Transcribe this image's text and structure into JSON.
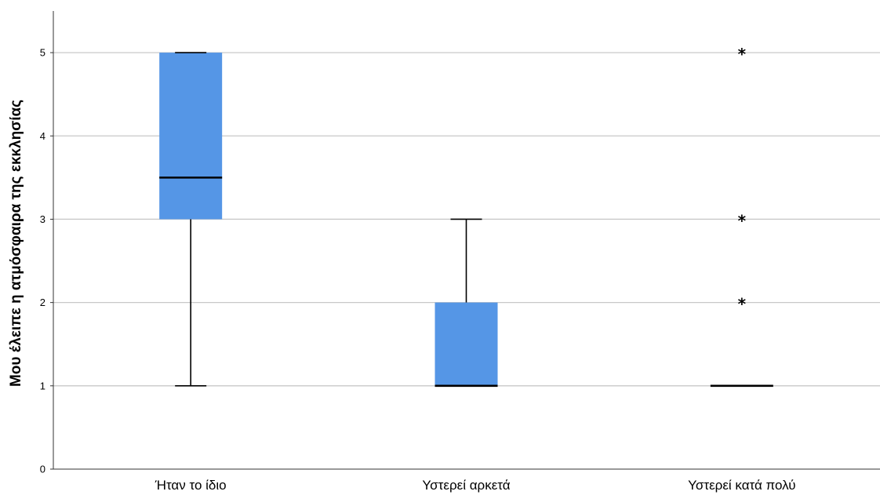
{
  "chart_data": {
    "type": "boxplot",
    "title": "",
    "xlabel": "",
    "ylabel": "Μου έλειπε η ατμόσφαιρα της εκκλησίας",
    "ylim": [
      0,
      5.5
    ],
    "yticks": [
      0,
      1,
      2,
      3,
      4,
      5
    ],
    "ytick_labels": [
      "0",
      "1",
      "2",
      "3",
      "4",
      "5"
    ],
    "grid": true,
    "box_color": "#5596E6",
    "categories": [
      "Ήταν το ίδιο",
      "Υστερεί αρκετά",
      "Υστερεί κατά πολύ"
    ],
    "boxes": [
      {
        "category": "Ήταν το ίδιο",
        "whisker_low": 1,
        "q1": 3,
        "median": 3.5,
        "q3": 5,
        "whisker_high": 5,
        "outliers": []
      },
      {
        "category": "Υστερεί αρκετά",
        "whisker_low": 1,
        "q1": 1,
        "median": 1,
        "q3": 2,
        "whisker_high": 3,
        "outliers": []
      },
      {
        "category": "Υστερεί κατά πολύ",
        "whisker_low": 1,
        "q1": 1,
        "median": 1,
        "q3": 1,
        "whisker_high": 1,
        "outliers": [
          2,
          3,
          5
        ]
      }
    ]
  }
}
